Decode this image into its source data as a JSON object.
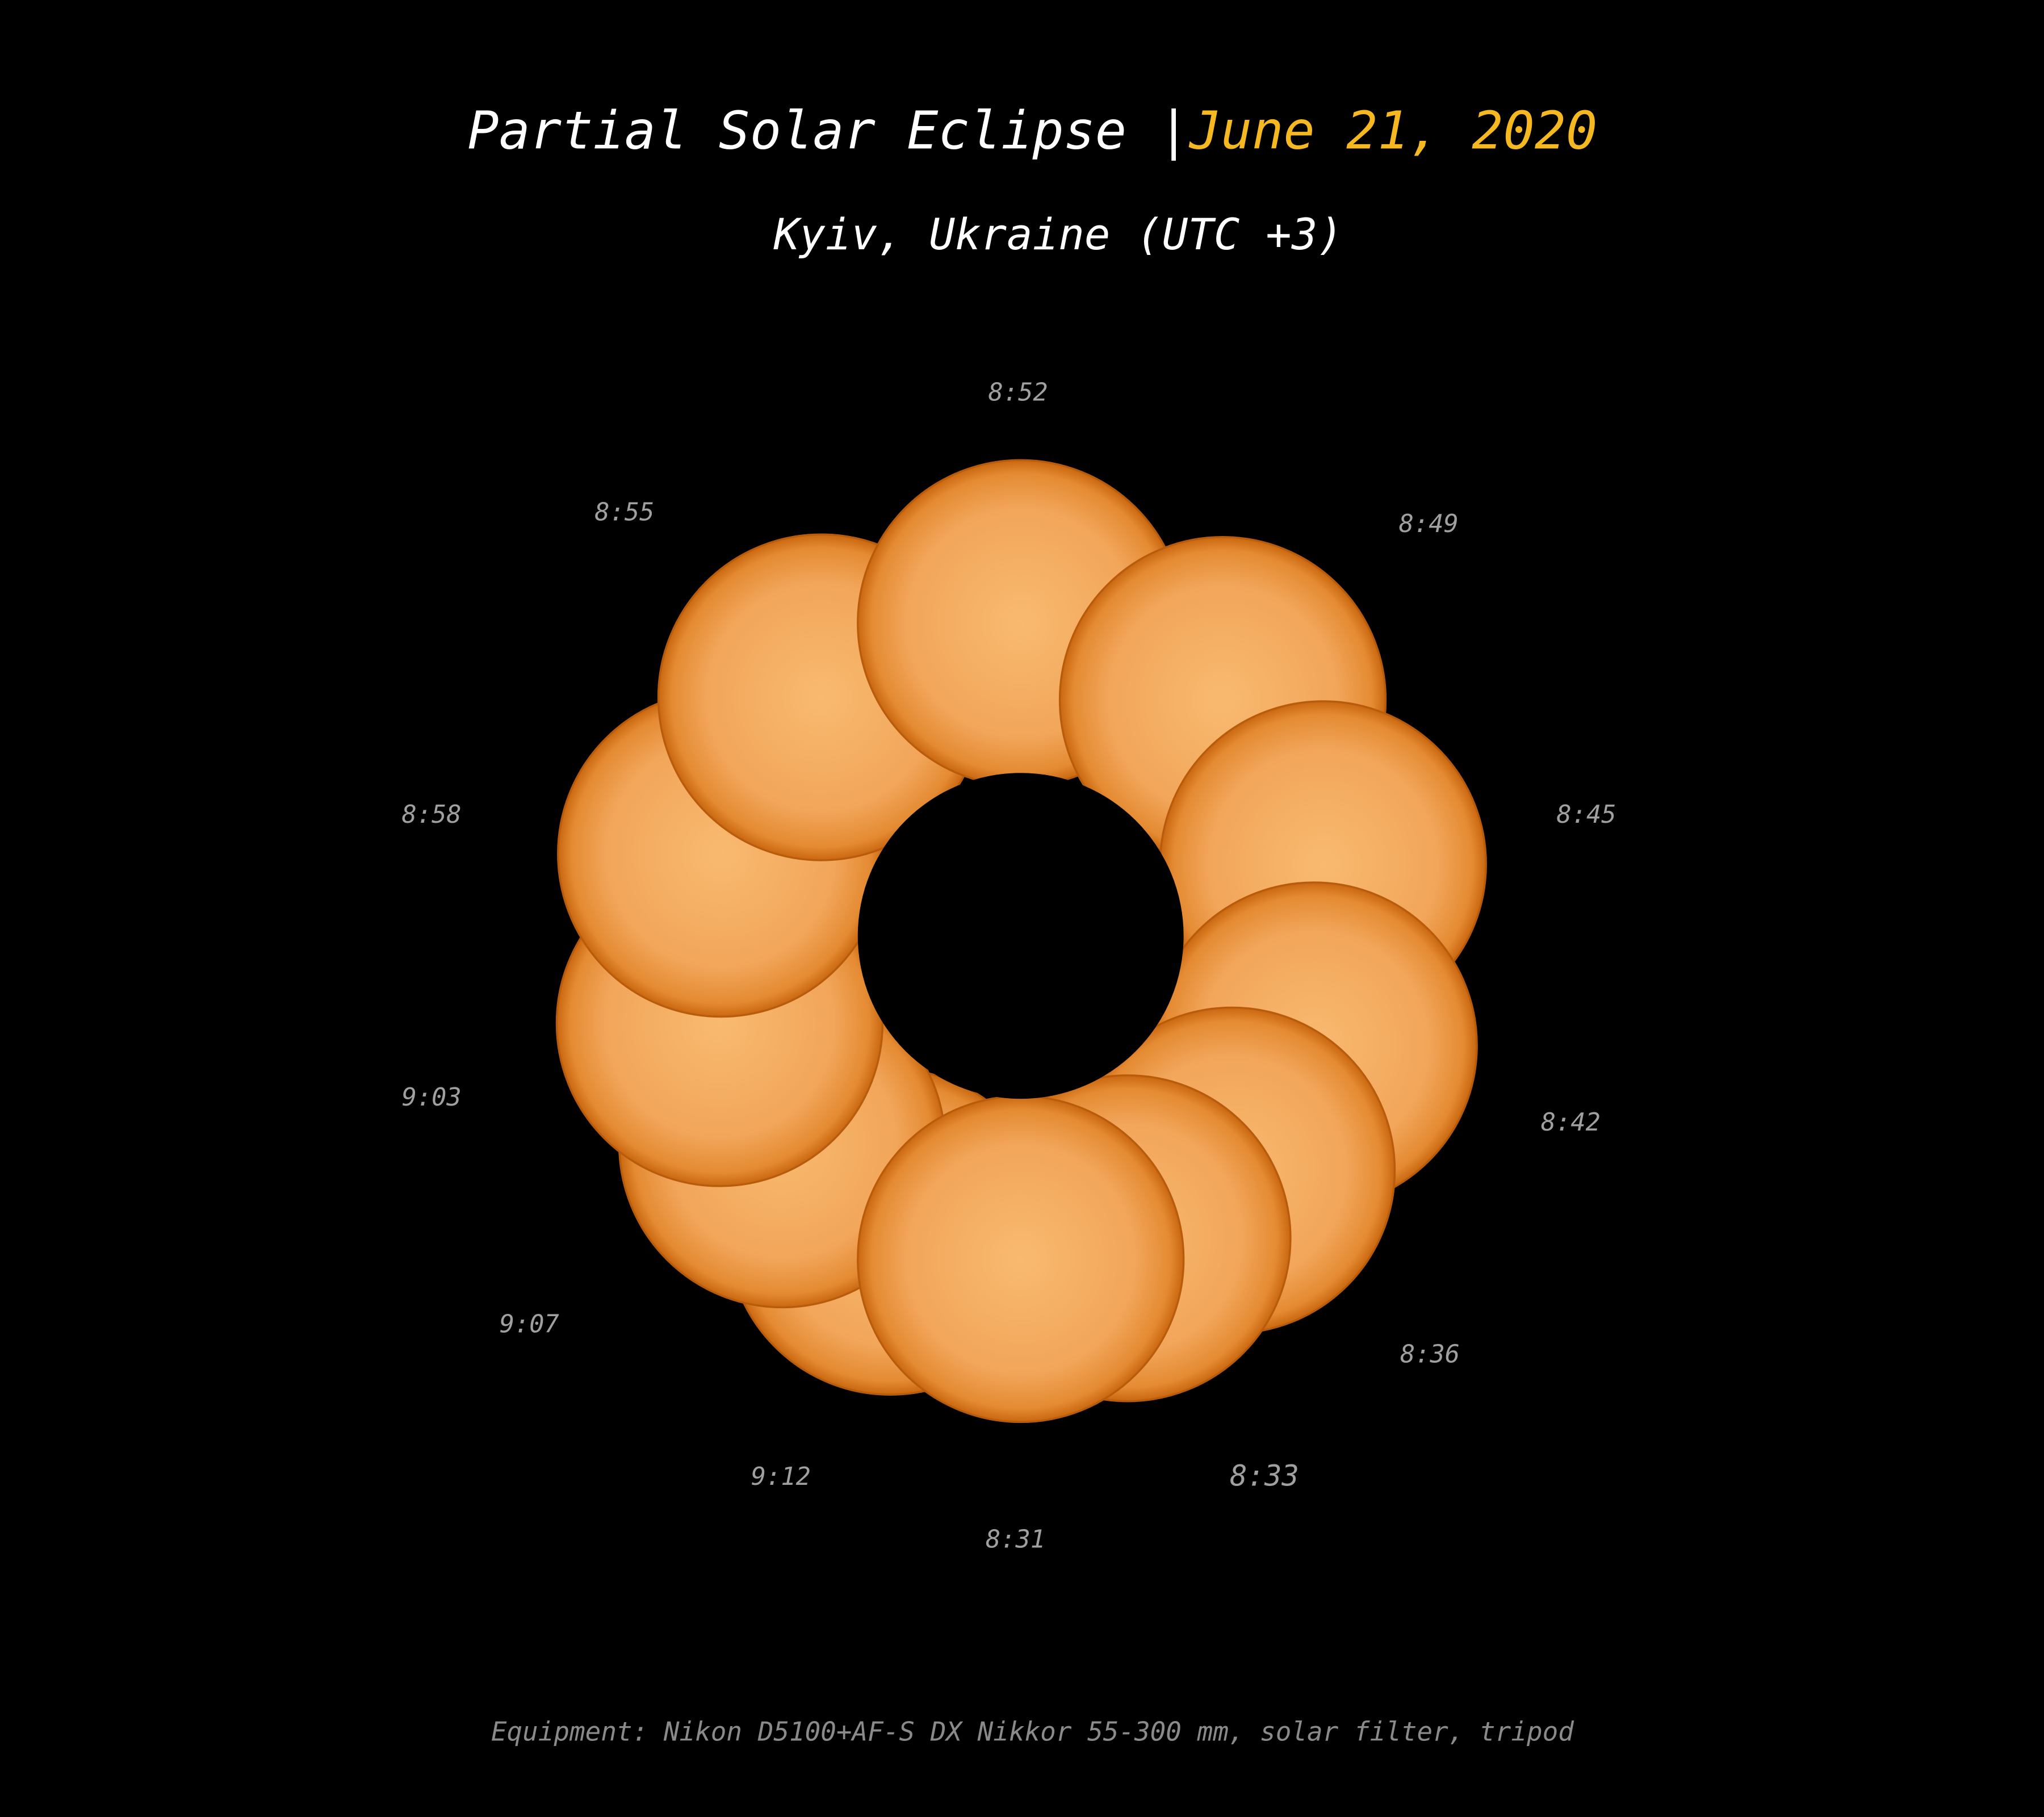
{
  "header": {
    "title": "Partial Solar Eclipse |",
    "date": "June 21, 2020",
    "subtitle": "Kyiv, Ukraine (UTC +3)"
  },
  "time_labels": [
    "8:31",
    "8:33",
    "8:36",
    "8:42",
    "8:45",
    "8:49",
    "8:52",
    "8:55",
    "8:58",
    "9:03",
    "9:07",
    "9:12"
  ],
  "footer": "Equipment: Nikon D5100+AF-S DX Nikkor 55-300 mm, solar filter, tripod"
}
